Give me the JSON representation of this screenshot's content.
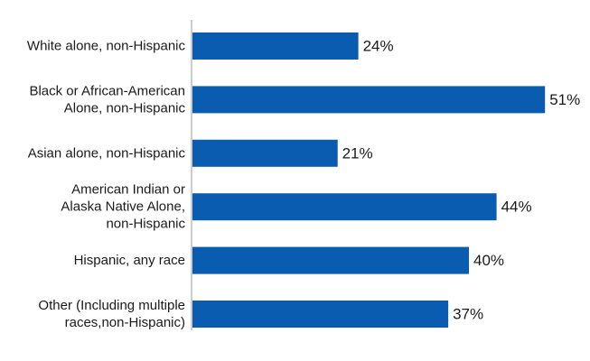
{
  "chart_data": {
    "type": "bar",
    "orientation": "horizontal",
    "categories": [
      [
        "White alone, non-Hispanic"
      ],
      [
        "Black or African-American",
        "Alone, non-Hispanic"
      ],
      [
        "Asian alone, non-Hispanic"
      ],
      [
        "American Indian or",
        "Alaska Native Alone,",
        "non-Hispanic"
      ],
      [
        "Hispanic, any race"
      ],
      [
        "Other (Including multiple",
        "races,non-Hispanic)"
      ]
    ],
    "values": [
      24,
      51,
      21,
      44,
      40,
      37
    ],
    "value_labels": [
      "24%",
      "51%",
      "21%",
      "44%",
      "40%",
      "37%"
    ],
    "unit": "%",
    "xlim": [
      0,
      55
    ],
    "grid": false,
    "legend": "none",
    "bar_color": "#0a5cb0"
  }
}
